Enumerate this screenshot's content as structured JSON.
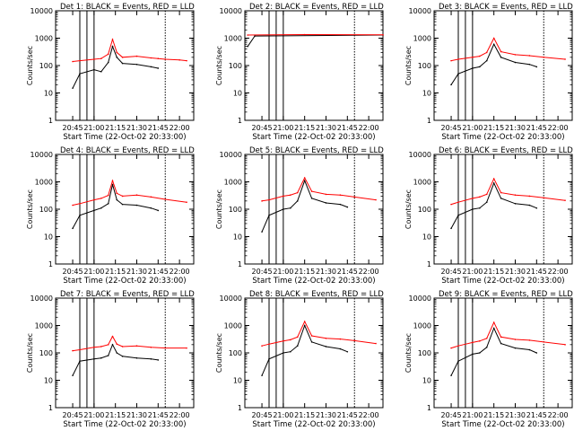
{
  "chart_data": [
    {
      "type": "line",
      "title": "Det 1: BLACK = Events, RED = LLD",
      "xlabel": "Start Time (22-Oct-02 20:33:00)",
      "ylabel": "Counts/sec",
      "x_ticks": [
        "20:45",
        "21:00",
        "21:15",
        "21:30",
        "21:45",
        "22:00"
      ],
      "y_ticks": [
        "1",
        "10",
        "100",
        "1000",
        "10000"
      ],
      "y_scale": "log",
      "ylim": [
        1,
        10000
      ],
      "series": [
        {
          "name": "Events",
          "color": "#000000",
          "x": [
            "20:45",
            "20:50",
            "21:00",
            "21:05",
            "21:10",
            "21:13",
            "21:16",
            "21:20",
            "21:30",
            "21:40",
            "21:45"
          ],
          "y": [
            15,
            50,
            70,
            60,
            130,
            500,
            200,
            120,
            110,
            90,
            80
          ]
        },
        {
          "name": "LLD",
          "color": "#ff0000",
          "x": [
            "20:45",
            "20:50",
            "21:00",
            "21:05",
            "21:10",
            "21:13",
            "21:16",
            "21:20",
            "21:30",
            "21:40",
            "21:45",
            "21:50",
            "22:00",
            "22:05"
          ],
          "y": [
            140,
            150,
            170,
            180,
            260,
            900,
            300,
            200,
            220,
            190,
            180,
            170,
            160,
            150
          ]
        }
      ],
      "annotations": {
        "vertical_lines": [
          "20:50",
          "20:55",
          "21:00",
          "21:50"
        ],
        "noise": {
          "color": "#ff0000",
          "width": 1
        }
      }
    },
    {
      "type": "line",
      "title": "Det 2: BLACK = Events, RED = LLD",
      "xlabel": "Start Time (22-Oct-02 20:33:00)",
      "ylabel": "Counts/sec",
      "x_ticks": [
        "20:45",
        "21:00",
        "21:15",
        "21:30",
        "21:45",
        "22:00"
      ],
      "y_ticks": [
        "1",
        "10",
        "100",
        "1000",
        "10000"
      ],
      "y_scale": "log",
      "ylim": [
        1,
        10000
      ],
      "series": [
        {
          "name": "Events",
          "color": "#000000",
          "x": [
            "20:35",
            "20:40",
            "22:10"
          ],
          "y": [
            500,
            1200,
            1300
          ]
        },
        {
          "name": "LLD",
          "color": "#ff0000",
          "x": [
            "20:35",
            "21:15",
            "22:10"
          ],
          "y": [
            1300,
            1350,
            1320
          ]
        }
      ],
      "annotations": {
        "vertical_lines": [
          "20:50",
          "20:55",
          "21:00",
          "21:50"
        ]
      }
    },
    {
      "type": "line",
      "title": "Det 3: BLACK = Events, RED = LLD",
      "xlabel": "Start Time (22-Oct-02 20:33:00)",
      "ylabel": "Counts/sec",
      "x_ticks": [
        "20:45",
        "21:00",
        "21:15",
        "21:30",
        "21:45",
        "22:00"
      ],
      "y_ticks": [
        "1",
        "10",
        "100",
        "1000",
        "10000"
      ],
      "y_scale": "log",
      "ylim": [
        1,
        10000
      ],
      "series": [
        {
          "name": "Events",
          "color": "#000000",
          "x": [
            "20:45",
            "20:50",
            "21:00",
            "21:05",
            "21:10",
            "21:15",
            "21:20",
            "21:30",
            "21:40",
            "21:45"
          ],
          "y": [
            20,
            50,
            80,
            90,
            150,
            600,
            200,
            130,
            110,
            90
          ]
        },
        {
          "name": "LLD",
          "color": "#ff0000",
          "x": [
            "20:45",
            "20:50",
            "21:00",
            "21:05",
            "21:10",
            "21:15",
            "21:20",
            "21:30",
            "21:40",
            "21:50",
            "22:05"
          ],
          "y": [
            150,
            170,
            200,
            220,
            300,
            1000,
            320,
            250,
            230,
            200,
            170
          ]
        }
      ],
      "annotations": {
        "vertical_lines": [
          "20:50",
          "20:55",
          "21:00",
          "21:50"
        ]
      }
    },
    {
      "type": "line",
      "title": "Det 4: BLACK = Events, RED = LLD",
      "xlabel": "Start Time (22-Oct-02 20:33:00)",
      "ylabel": "Counts/sec",
      "x_ticks": [
        "20:45",
        "21:00",
        "21:15",
        "21:30",
        "21:45",
        "22:00"
      ],
      "y_ticks": [
        "1",
        "10",
        "100",
        "1000",
        "10000"
      ],
      "y_scale": "log",
      "ylim": [
        1,
        10000
      ],
      "series": [
        {
          "name": "Events",
          "color": "#000000",
          "x": [
            "20:45",
            "20:50",
            "21:00",
            "21:05",
            "21:10",
            "21:13",
            "21:16",
            "21:20",
            "21:30",
            "21:40",
            "21:45"
          ],
          "y": [
            20,
            60,
            90,
            110,
            160,
            800,
            220,
            150,
            140,
            110,
            90
          ]
        },
        {
          "name": "LLD",
          "color": "#ff0000",
          "x": [
            "20:45",
            "20:50",
            "21:00",
            "21:05",
            "21:10",
            "21:13",
            "21:16",
            "21:20",
            "21:30",
            "21:40",
            "21:50",
            "22:05"
          ],
          "y": [
            140,
            160,
            220,
            250,
            320,
            1100,
            380,
            300,
            330,
            280,
            230,
            180
          ]
        }
      ],
      "annotations": {
        "vertical_lines": [
          "20:50",
          "20:55",
          "21:00",
          "21:50"
        ]
      }
    },
    {
      "type": "line",
      "title": "Det 5: BLACK = Events, RED = LLD",
      "xlabel": "Start Time (22-Oct-02 20:33:00)",
      "ylabel": "Counts/sec",
      "x_ticks": [
        "20:45",
        "21:00",
        "21:15",
        "21:30",
        "21:45",
        "22:00"
      ],
      "y_ticks": [
        "1",
        "10",
        "100",
        "1000",
        "10000"
      ],
      "y_scale": "log",
      "ylim": [
        1,
        10000
      ],
      "series": [
        {
          "name": "Events",
          "color": "#000000",
          "x": [
            "20:45",
            "20:50",
            "21:00",
            "21:05",
            "21:10",
            "21:15",
            "21:20",
            "21:30",
            "21:40",
            "21:45"
          ],
          "y": [
            15,
            60,
            100,
            110,
            200,
            1100,
            250,
            170,
            150,
            120
          ]
        },
        {
          "name": "LLD",
          "color": "#ff0000",
          "x": [
            "20:45",
            "20:50",
            "21:00",
            "21:05",
            "21:10",
            "21:15",
            "21:20",
            "21:30",
            "21:40",
            "21:50",
            "22:05"
          ],
          "y": [
            200,
            220,
            300,
            330,
            400,
            1400,
            450,
            350,
            330,
            280,
            220
          ]
        }
      ],
      "annotations": {
        "vertical_lines": [
          "20:50",
          "20:55",
          "21:00",
          "21:50"
        ]
      }
    },
    {
      "type": "line",
      "title": "Det 6: BLACK = Events, RED = LLD",
      "xlabel": "Start Time (22-Oct-02 20:33:00)",
      "ylabel": "Counts/sec",
      "x_ticks": [
        "20:45",
        "21:00",
        "21:15",
        "21:30",
        "21:45",
        "22:00"
      ],
      "y_ticks": [
        "1",
        "10",
        "100",
        "1000",
        "10000"
      ],
      "y_scale": "log",
      "ylim": [
        1,
        10000
      ],
      "series": [
        {
          "name": "Events",
          "color": "#000000",
          "x": [
            "20:45",
            "20:50",
            "21:00",
            "21:05",
            "21:10",
            "21:15",
            "21:20",
            "21:30",
            "21:40",
            "21:45"
          ],
          "y": [
            20,
            60,
            100,
            110,
            180,
            900,
            250,
            160,
            140,
            110
          ]
        },
        {
          "name": "LLD",
          "color": "#ff0000",
          "x": [
            "20:45",
            "20:50",
            "21:00",
            "21:05",
            "21:10",
            "21:15",
            "21:20",
            "21:30",
            "21:40",
            "21:50",
            "22:05"
          ],
          "y": [
            150,
            180,
            250,
            280,
            350,
            1300,
            400,
            330,
            300,
            260,
            210
          ]
        }
      ],
      "annotations": {
        "vertical_lines": [
          "20:50",
          "20:55",
          "21:00",
          "21:50"
        ]
      }
    },
    {
      "type": "line",
      "title": "Det 7: BLACK = Events, RED = LLD",
      "xlabel": "Start Time (22-Oct-02 20:33:00)",
      "ylabel": "Counts/sec",
      "x_ticks": [
        "20:45",
        "21:00",
        "21:15",
        "21:30",
        "21:45",
        "22:00"
      ],
      "y_ticks": [
        "1",
        "10",
        "100",
        "1000",
        "10000"
      ],
      "y_scale": "log",
      "ylim": [
        1,
        10000
      ],
      "series": [
        {
          "name": "Events",
          "color": "#000000",
          "x": [
            "20:45",
            "20:50",
            "21:00",
            "21:05",
            "21:10",
            "21:13",
            "21:16",
            "21:20",
            "21:30",
            "21:40",
            "21:45"
          ],
          "y": [
            15,
            50,
            60,
            65,
            80,
            200,
            100,
            75,
            65,
            60,
            55
          ]
        },
        {
          "name": "LLD",
          "color": "#ff0000",
          "x": [
            "20:45",
            "20:50",
            "21:00",
            "21:05",
            "21:10",
            "21:13",
            "21:16",
            "21:20",
            "21:30",
            "21:40",
            "21:50",
            "22:05"
          ],
          "y": [
            120,
            130,
            160,
            170,
            200,
            400,
            210,
            170,
            180,
            160,
            150,
            150
          ]
        }
      ],
      "annotations": {
        "vertical_lines": [
          "20:50",
          "20:55",
          "21:00",
          "21:50"
        ]
      }
    },
    {
      "type": "line",
      "title": "Det 8: BLACK = Events, RED = LLD",
      "xlabel": "Start Time (22-Oct-02 20:33:00)",
      "ylabel": "Counts/sec",
      "x_ticks": [
        "20:45",
        "21:00",
        "21:15",
        "21:30",
        "21:45",
        "22:00"
      ],
      "y_ticks": [
        "1",
        "10",
        "100",
        "1000",
        "10000"
      ],
      "y_scale": "log",
      "ylim": [
        1,
        10000
      ],
      "series": [
        {
          "name": "Events",
          "color": "#000000",
          "x": [
            "20:45",
            "20:50",
            "21:00",
            "21:05",
            "21:10",
            "21:15",
            "21:20",
            "21:30",
            "21:40",
            "21:45"
          ],
          "y": [
            15,
            60,
            100,
            110,
            180,
            1000,
            250,
            170,
            140,
            110
          ]
        },
        {
          "name": "LLD",
          "color": "#ff0000",
          "x": [
            "20:45",
            "20:50",
            "21:00",
            "21:05",
            "21:10",
            "21:15",
            "21:20",
            "21:30",
            "21:40",
            "21:50",
            "22:05"
          ],
          "y": [
            180,
            210,
            270,
            300,
            380,
            1400,
            420,
            340,
            320,
            280,
            220
          ]
        }
      ],
      "annotations": {
        "vertical_lines": [
          "20:50",
          "20:55",
          "21:00",
          "21:50"
        ]
      }
    },
    {
      "type": "line",
      "title": "Det 9: BLACK = Events, RED = LLD",
      "xlabel": "Start Time (22-Oct-02 20:33:00)",
      "ylabel": "Counts/sec",
      "x_ticks": [
        "20:45",
        "21:00",
        "21:15",
        "21:30",
        "21:45",
        "22:00"
      ],
      "y_ticks": [
        "1",
        "10",
        "100",
        "1000",
        "10000"
      ],
      "y_scale": "log",
      "ylim": [
        1,
        10000
      ],
      "series": [
        {
          "name": "Events",
          "color": "#000000",
          "x": [
            "20:45",
            "20:50",
            "21:00",
            "21:05",
            "21:10",
            "21:15",
            "21:20",
            "21:30",
            "21:40",
            "21:45"
          ],
          "y": [
            15,
            50,
            90,
            100,
            160,
            800,
            220,
            150,
            130,
            100
          ]
        },
        {
          "name": "LLD",
          "color": "#ff0000",
          "x": [
            "20:45",
            "20:50",
            "21:00",
            "21:05",
            "21:10",
            "21:15",
            "21:20",
            "21:30",
            "21:40",
            "21:50",
            "22:05"
          ],
          "y": [
            150,
            180,
            240,
            270,
            340,
            1300,
            380,
            310,
            290,
            250,
            200
          ]
        }
      ],
      "annotations": {
        "vertical_lines": [
          "20:50",
          "20:55",
          "21:00",
          "21:50"
        ]
      }
    }
  ]
}
